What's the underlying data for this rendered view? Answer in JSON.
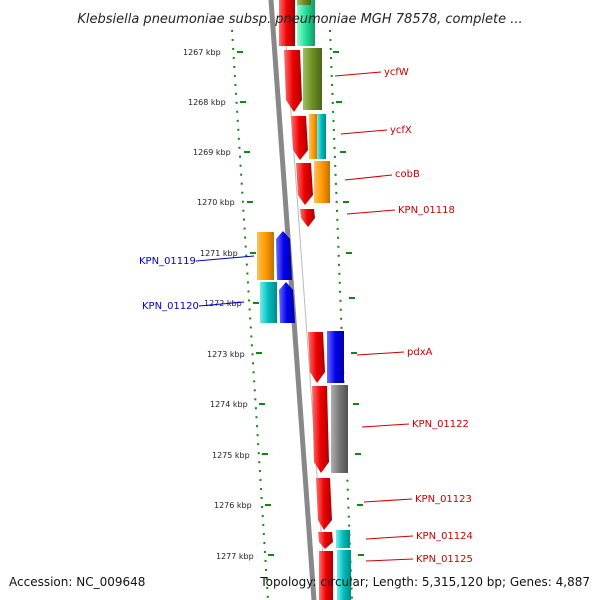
{
  "title": "Klebsiella pneumoniae subsp. pneumoniae MGH 78578, complete ...",
  "footer": {
    "accession": "Accession: NC_009648",
    "topology": "Topology: circular; Length: 5,315,120 bp; Genes: 4,887"
  },
  "scale": {
    "ticks": [
      "1267 kbp",
      "1268 kbp",
      "1269 kbp",
      "1270 kbp",
      "1271 kbp",
      "1272 kbp",
      "1273 kbp",
      "1274 kbp",
      "1275 kbp",
      "1276 kbp",
      "1277 kbp"
    ]
  },
  "colors": {
    "label_forward": "#cc0000",
    "label_reverse": "#0000cc",
    "backbone": "#888888",
    "ticks": "#118811"
  },
  "genes": [
    {
      "name": "ycfW",
      "strand": "forward",
      "color": "#ee0000"
    },
    {
      "name": "ycfX",
      "strand": "forward",
      "color": "#ee0000"
    },
    {
      "name": "cobB",
      "strand": "forward",
      "color": "#ee0000"
    },
    {
      "name": "KPN_01118",
      "strand": "forward",
      "color": "#ee0000"
    },
    {
      "name": "KPN_01119",
      "strand": "reverse",
      "color": "#0000ee"
    },
    {
      "name": "KPN_01120",
      "strand": "reverse",
      "color": "#0000ee"
    },
    {
      "name": "pdxA",
      "strand": "forward",
      "color": "#ee0000"
    },
    {
      "name": "KPN_01122",
      "strand": "forward",
      "color": "#ee0000"
    },
    {
      "name": "KPN_01123",
      "strand": "forward",
      "color": "#ee0000"
    },
    {
      "name": "KPN_01124",
      "strand": "forward",
      "color": "#ee0000"
    },
    {
      "name": "KPN_01125",
      "strand": "forward",
      "color": "#ee0000"
    }
  ],
  "categories": [
    {
      "color": "#22dd99"
    },
    {
      "color": "#6b8e23"
    },
    {
      "color": "#00bbbb"
    },
    {
      "color": "#ff9900"
    },
    {
      "color": "#0000ee"
    },
    {
      "color": "#777777"
    }
  ]
}
